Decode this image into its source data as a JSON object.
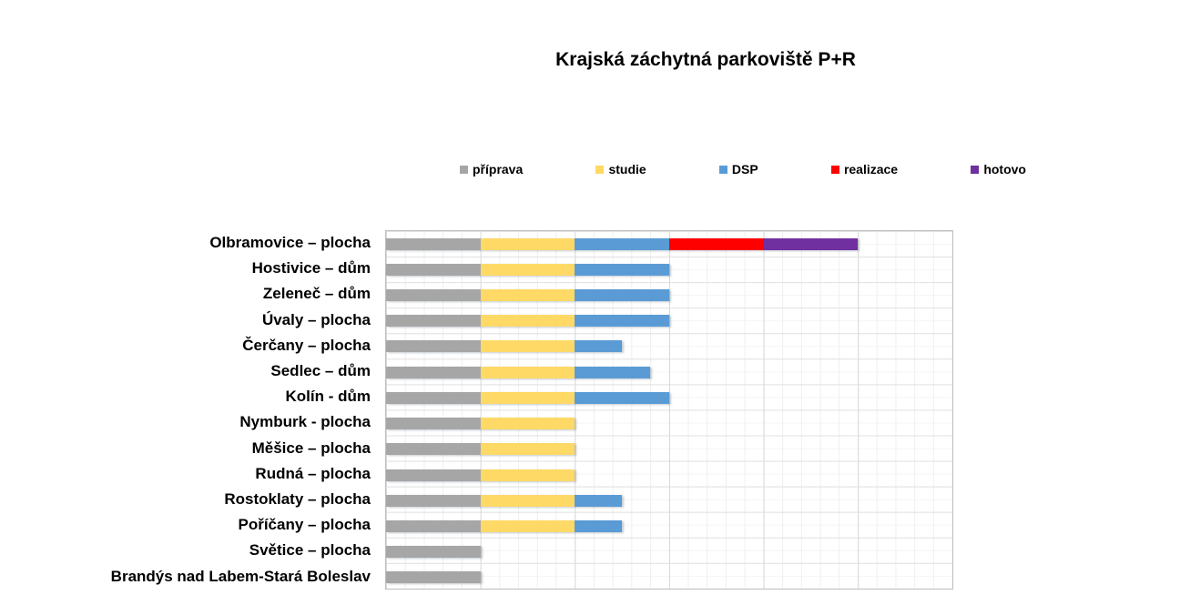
{
  "title": "Krajská záchytná parkoviště P+R",
  "legend": {
    "position": "top",
    "items": [
      {
        "label": "příprava",
        "color": "#A6A6A6"
      },
      {
        "label": "studie",
        "color": "#FFD966"
      },
      {
        "label": "DSP",
        "color": "#5B9BD5"
      },
      {
        "label": "realizace",
        "color": "#FF0000"
      },
      {
        "label": "hotovo",
        "color": "#7030A0"
      }
    ]
  },
  "chart_data": {
    "type": "bar",
    "stacked": true,
    "orientation": "horizontal",
    "title": "Krajská záchytná parkoviště P+R",
    "xlabel": "",
    "ylabel": "",
    "xlim": [
      0,
      6
    ],
    "x_major_unit": 1,
    "x_minor_unit": 0.2,
    "grid": true,
    "legend_position": "top",
    "categories": [
      "Olbramovice – plocha",
      "Hostivice – dům",
      "Zeleneč – dům",
      "Úvaly – plocha",
      "Čerčany – plocha",
      "Sedlec – dům",
      "Kolín - dům",
      "Nymburk - plocha",
      "Měšice – plocha",
      "Rudná – plocha",
      "Rostoklaty – plocha",
      "Poříčany – plocha",
      "Světice – plocha",
      "Brandýs nad Labem-Stará Boleslav"
    ],
    "series": [
      {
        "name": "příprava",
        "color": "#A6A6A6",
        "values": [
          1,
          1,
          1,
          1,
          1,
          1,
          1,
          1,
          1,
          1,
          1,
          1,
          1,
          1
        ]
      },
      {
        "name": "studie",
        "color": "#FFD966",
        "values": [
          1,
          1,
          1,
          1,
          1,
          1,
          1,
          1,
          1,
          1,
          1,
          1,
          0,
          0
        ]
      },
      {
        "name": "DSP",
        "color": "#5B9BD5",
        "values": [
          1,
          1,
          1,
          1,
          0.5,
          0.8,
          1,
          0,
          0,
          0,
          0.5,
          0.5,
          0,
          0
        ]
      },
      {
        "name": "realizace",
        "color": "#FF0000",
        "values": [
          1,
          0,
          0,
          0,
          0,
          0,
          0,
          0,
          0,
          0,
          0,
          0,
          0,
          0
        ]
      },
      {
        "name": "hotovo",
        "color": "#7030A0",
        "values": [
          1,
          0,
          0,
          0,
          0,
          0,
          0,
          0,
          0,
          0,
          0,
          0,
          0,
          0
        ]
      }
    ]
  }
}
